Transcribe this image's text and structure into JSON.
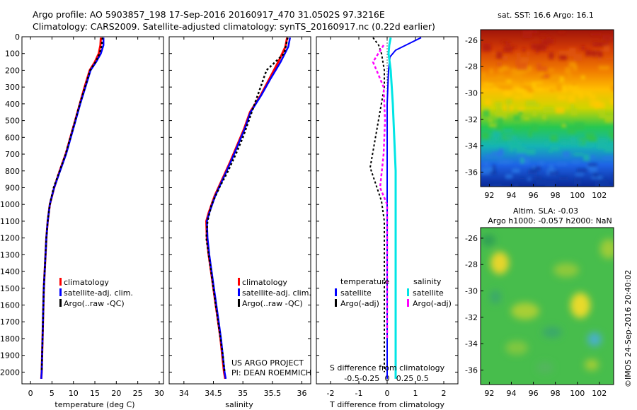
{
  "header": {
    "line1": "Argo profile: AO 5903857_198 17-Sep-2016 20160917_470 31.0502S 97.3216E",
    "line2": "Climatology: CARS2009. Satellite-adjusted climatology: synTS_20160917.nc (0.22d earlier)"
  },
  "credits": {
    "project": "US ARGO PROJECT",
    "pi": "PI: DEAN ROEMMICH",
    "imos": "©IMOS 24-Sep-2016 20:40:02"
  },
  "colors": {
    "climatology": "#ff0000",
    "satellite": "#0000ff",
    "argo": "#000000",
    "satellite_S": "#00e5e5",
    "argo_S": "#ff00ff"
  },
  "chart_data": [
    {
      "type": "line",
      "name": "temperature-profile",
      "xlabel": "temperature (deg C)",
      "ylabel": "",
      "xlim": [
        -2,
        31
      ],
      "ylim": [
        2070,
        0
      ],
      "xticks": [
        0,
        5,
        10,
        15,
        20,
        25,
        30
      ],
      "yticks": [
        0,
        100,
        200,
        300,
        400,
        500,
        600,
        700,
        800,
        900,
        1000,
        1100,
        1200,
        1300,
        1400,
        1500,
        1600,
        1700,
        1800,
        1900,
        2000
      ],
      "legend": [
        "climatology",
        "satellite-adj. clim.",
        "Argo(..raw -QC)"
      ],
      "legend_placement": "lower-center",
      "series": [
        {
          "name": "climatology",
          "x": [
            16.4,
            16.3,
            15.9,
            15.0,
            13.8,
            12.6,
            11.5,
            10.4,
            9.3,
            8.2,
            6.8,
            5.5,
            4.5,
            4.0,
            3.7,
            3.5,
            3.3,
            3.1,
            3.0,
            2.9,
            2.8,
            2.7,
            2.6,
            2.5
          ],
          "y": [
            5,
            50,
            100,
            150,
            200,
            300,
            400,
            500,
            600,
            700,
            800,
            900,
            1000,
            1100,
            1200,
            1300,
            1400,
            1500,
            1600,
            1700,
            1800,
            1900,
            2000,
            2040
          ]
        },
        {
          "name": "satellite-adj. clim.",
          "x": [
            17.0,
            17.0,
            16.4,
            15.3,
            14.0,
            12.8,
            11.6,
            10.5,
            9.4,
            8.3,
            6.9,
            5.5,
            4.5,
            4.0,
            3.7,
            3.5,
            3.3,
            3.1,
            3.0,
            2.9,
            2.8,
            2.7,
            2.6,
            2.5
          ],
          "y": [
            5,
            50,
            100,
            150,
            200,
            300,
            400,
            500,
            600,
            700,
            800,
            900,
            1000,
            1100,
            1200,
            1300,
            1400,
            1500,
            1600,
            1700,
            1800,
            1900,
            2000,
            2040
          ]
        },
        {
          "name": "Argo(..raw -QC)",
          "x": [
            16.8,
            16.6,
            16.1,
            15.2,
            13.9,
            12.7,
            11.5,
            10.4,
            9.3,
            8.2,
            6.8,
            5.4,
            4.5,
            4.0,
            3.7,
            3.5,
            3.3,
            3.1,
            3.0,
            2.9,
            2.8,
            2.7,
            2.6
          ],
          "y": [
            5,
            50,
            100,
            150,
            200,
            300,
            400,
            500,
            600,
            700,
            800,
            900,
            1000,
            1100,
            1200,
            1300,
            1400,
            1500,
            1600,
            1700,
            1800,
            1900,
            2000
          ]
        }
      ]
    },
    {
      "type": "line",
      "name": "salinity-profile",
      "xlabel": "salinity",
      "xlim": [
        33.75,
        36.15
      ],
      "ylim": [
        2070,
        0
      ],
      "xticks": [
        34,
        34.5,
        35,
        35.5,
        36
      ],
      "legend": [
        "climatology",
        "satellite-adj. clim.",
        "Argo(..raw -QC)"
      ],
      "legend_placement": "lower-center",
      "series": [
        {
          "name": "climatology",
          "x": [
            35.75,
            35.72,
            35.6,
            35.45,
            35.3,
            35.12,
            35.02,
            34.9,
            34.78,
            34.65,
            34.52,
            34.42,
            34.38,
            34.39,
            34.42,
            34.46,
            34.5,
            34.54,
            34.58,
            34.62,
            34.65,
            34.68,
            34.7
          ],
          "y": [
            5,
            60,
            150,
            250,
            350,
            450,
            550,
            650,
            750,
            850,
            950,
            1050,
            1100,
            1200,
            1300,
            1400,
            1500,
            1600,
            1700,
            1800,
            1900,
            2000,
            2040
          ]
        },
        {
          "name": "satellite-adj. clim.",
          "x": [
            35.8,
            35.77,
            35.64,
            35.47,
            35.31,
            35.13,
            35.03,
            34.91,
            34.79,
            34.66,
            34.53,
            34.43,
            34.39,
            34.4,
            34.43,
            34.47,
            34.51,
            34.55,
            34.59,
            34.63,
            34.66,
            34.69,
            34.71
          ],
          "y": [
            5,
            60,
            150,
            250,
            350,
            450,
            550,
            650,
            750,
            850,
            950,
            1050,
            1100,
            1200,
            1300,
            1400,
            1500,
            1600,
            1700,
            1800,
            1900,
            2000,
            2040
          ]
        },
        {
          "name": "Argo(..raw -QC)",
          "x": [
            35.76,
            35.7,
            35.4,
            35.3,
            35.2,
            35.1,
            35.0,
            34.88,
            34.75,
            34.6,
            34.47,
            34.4,
            34.38,
            34.42,
            34.46,
            34.5,
            34.54,
            34.58,
            34.62,
            34.66,
            34.69
          ],
          "y": [
            5,
            100,
            200,
            300,
            400,
            500,
            600,
            700,
            800,
            900,
            1000,
            1100,
            1200,
            1300,
            1400,
            1500,
            1600,
            1700,
            1800,
            1900,
            2000
          ]
        }
      ]
    },
    {
      "type": "line",
      "name": "difference-profile",
      "xlabel": "T difference from climatology",
      "xlabel_top": "S difference from climatology",
      "xlim": [
        -2.5,
        2.5
      ],
      "ylim": [
        2070,
        0
      ],
      "xticks": [
        -2,
        -1,
        0,
        1,
        2
      ],
      "xticks_S": [
        -0.5,
        -0.25,
        0,
        0.25,
        0.5
      ],
      "legend_headers": [
        "temperature",
        "salinity"
      ],
      "legend": [
        "satellite",
        "Argo(-adj)",
        "satellite",
        "Argo(-adj)"
      ],
      "legend_placement": "lower-center",
      "series": [
        {
          "name": "T satellite",
          "x": [
            1.2,
            0.9,
            0.3,
            0.1,
            0.05,
            0.0,
            0.0,
            0.0,
            0.0,
            0.0,
            0.0,
            0.0,
            0.0,
            0.0,
            0.0
          ],
          "y": [
            5,
            30,
            80,
            120,
            200,
            400,
            600,
            800,
            1000,
            1200,
            1400,
            1600,
            1800,
            1900,
            2040
          ]
        },
        {
          "name": "T Argo(-adj)",
          "x": [
            -0.5,
            -0.3,
            -0.2,
            -0.1,
            -0.1,
            -0.6,
            -0.4,
            -0.2,
            -0.1,
            -0.1,
            -0.1,
            -0.1,
            -0.1
          ],
          "y": [
            5,
            50,
            100,
            200,
            300,
            780,
            880,
            980,
            1100,
            1300,
            1500,
            1700,
            2000
          ]
        },
        {
          "name": "S satellite",
          "x": [
            0.05,
            0.03,
            0.02,
            0.05,
            0.08,
            0.1,
            0.12,
            0.12,
            0.12,
            0.12,
            0.12,
            0.12,
            0.12
          ],
          "y": [
            5,
            50,
            100,
            200,
            400,
            600,
            800,
            1000,
            1200,
            1400,
            1600,
            1800,
            2040
          ]
        },
        {
          "name": "S Argo(-adj)",
          "x": [
            -0.05,
            -0.2,
            -0.15,
            -0.05,
            -0.03,
            -0.05,
            -0.1,
            0.0,
            0.0,
            0.0,
            0.0,
            0.0
          ],
          "y": [
            50,
            150,
            200,
            300,
            500,
            700,
            900,
            1000,
            1200,
            1400,
            1600,
            1800
          ]
        }
      ]
    },
    {
      "type": "heatmap",
      "name": "sst-map",
      "title": "sat. SST: 16.6  Argo: 16.1",
      "xticks": [
        92,
        94,
        96,
        98,
        100,
        102
      ],
      "yticks": [
        -26,
        -28,
        -30,
        -32,
        -34,
        -36
      ],
      "xlim": [
        91.2,
        103.3
      ],
      "ylim": [
        -37.1,
        -25.2
      ],
      "colormap": "jet-like, warm north to cool south"
    },
    {
      "type": "heatmap",
      "name": "sla-map",
      "title": "Altim. SLA: -0.03",
      "subtitle": "Argo h1000: -0.057 h2000: NaN",
      "xticks": [
        92,
        94,
        96,
        98,
        100,
        102
      ],
      "yticks": [
        -26,
        -28,
        -30,
        -32,
        -34,
        -36
      ],
      "xlim": [
        91.2,
        103.3
      ],
      "ylim": [
        -37.1,
        -25.2
      ],
      "colormap": "green background with yellow blobs"
    }
  ]
}
